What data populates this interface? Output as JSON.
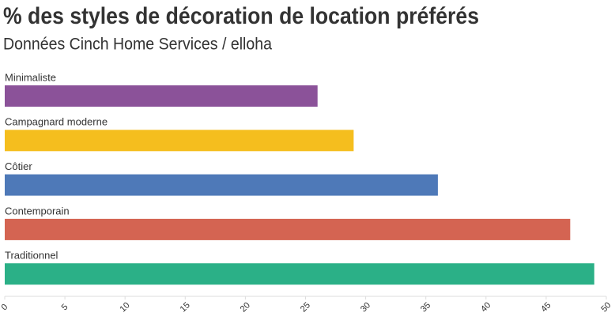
{
  "chart_data": {
    "type": "bar",
    "orientation": "horizontal",
    "title": "% des styles de décoration de location préférés",
    "subtitle": "Données Cinch Home Services / elloha",
    "categories": [
      "Minimaliste",
      "Campagnard moderne",
      "Côtier",
      "Contemporain",
      "Traditionnel"
    ],
    "values": [
      26,
      29,
      36,
      47,
      49
    ],
    "colors": [
      "#8b5299",
      "#f5be1e",
      "#4e79b8",
      "#d46452",
      "#2bb087"
    ],
    "xlim": [
      0,
      50
    ],
    "xticks": [
      0,
      5,
      10,
      15,
      20,
      25,
      30,
      35,
      40,
      45,
      50
    ]
  }
}
